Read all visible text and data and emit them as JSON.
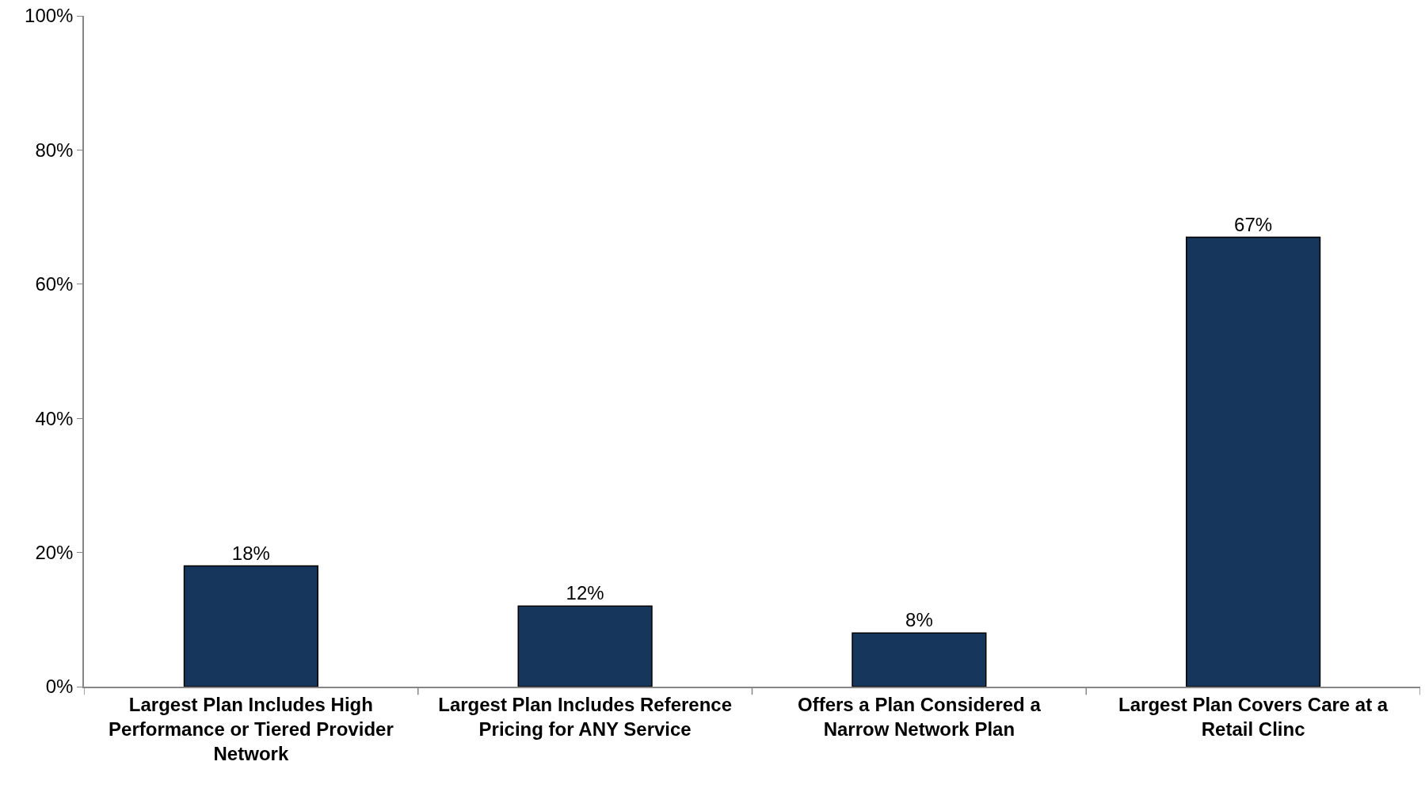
{
  "chart_data": {
    "type": "bar",
    "categories": [
      "Largest Plan Includes High Performance or Tiered Provider Network",
      "Largest Plan Includes Reference Pricing for ANY Service",
      "Offers a Plan Considered a Narrow Network Plan",
      "Largest Plan Covers Care at a Retail Clinc"
    ],
    "values": [
      18,
      12,
      8,
      67
    ],
    "value_labels": [
      "18%",
      "12%",
      "8%",
      "67%"
    ],
    "color": "#16365c",
    "ylim": [
      0,
      100
    ],
    "yticks": [
      {
        "value": 0,
        "label": "0%"
      },
      {
        "value": 20,
        "label": "20%"
      },
      {
        "value": 40,
        "label": "40%"
      },
      {
        "value": 60,
        "label": "60%"
      },
      {
        "value": 80,
        "label": "80%"
      },
      {
        "value": 100,
        "label": "100%"
      }
    ],
    "legend": false
  }
}
